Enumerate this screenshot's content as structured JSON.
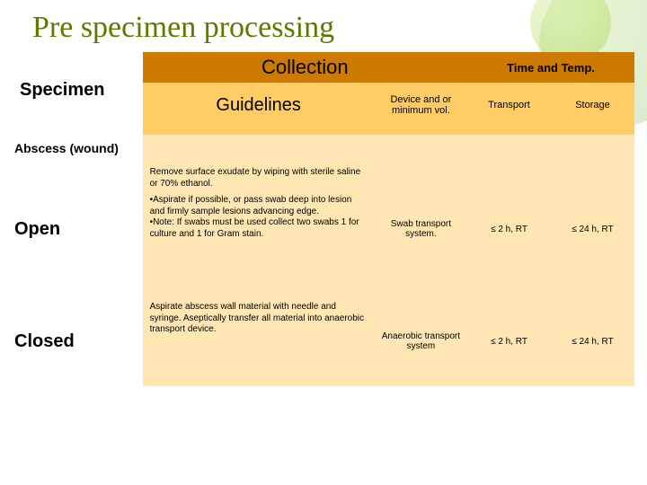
{
  "title": "Pre specimen processing",
  "headers": {
    "specimen": "Specimen",
    "collection": "Collection",
    "guidelines": "Guidelines",
    "time_temp": "Time and Temp.",
    "device": "Device and or minimum vol.",
    "transport": "Transport",
    "storage": "Storage"
  },
  "category": "Abscess (wound)",
  "rows": [
    {
      "label": "Open",
      "guide_top": "Remove surface exudate by wiping with sterile saline or 70% ethanol.",
      "guide_body": "•Aspirate if possible, or pass swab deep into lesion and firmly sample lesions advancing edge.\n•Note: If swabs must be used collect two swabs 1 for culture and 1 for Gram stain.",
      "device": "Swab transport system.",
      "transport": "≤ 2 h, RT",
      "storage": "≤ 24 h, RT"
    },
    {
      "label": "Closed",
      "guide_top": "",
      "guide_body": "Aspirate abscess wall material with needle and syringe. Aseptically transfer all material into anaerobic transport device.",
      "device": "Anaerobic transport system",
      "transport": "≤ 2 h, RT",
      "storage": "≤ 24 h, RT"
    }
  ],
  "colors": {
    "title": "#5a7a00",
    "header_dark": "#cc7a00",
    "header_light": "#ffcc66",
    "cell_fill": "#ffe6b3",
    "background": "#ffffff"
  }
}
